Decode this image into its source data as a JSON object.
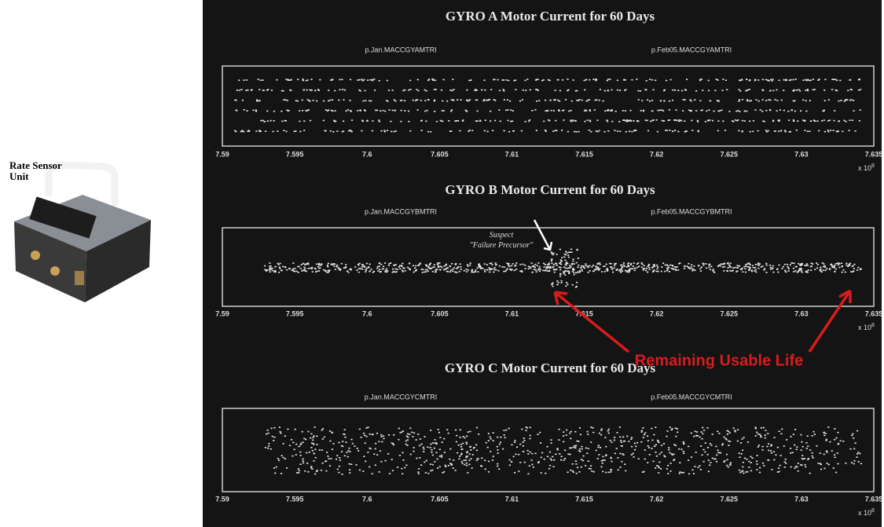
{
  "left": {
    "label_lines": [
      "Rate Sensor",
      "Unit"
    ]
  },
  "panels": [
    {
      "title": "GYRO A Motor Current for 60 Days",
      "legend_left": "p.Jan.MACCGYAMTRI",
      "legend_right": "p.Feb05.MACCGYAMTRI",
      "xticks": [
        "7.59",
        "7.595",
        "7.6",
        "7.605",
        "7.61",
        "7.615",
        "7.62",
        "7.625",
        "7.63",
        "7.635"
      ],
      "multiplier": "x 10",
      "exponent": "8"
    },
    {
      "title": "GYRO B Motor Current for 60 Days",
      "legend_left": "p.Jan.MACCGYBMTRI",
      "legend_right": "p.Feb05.MACCGYBMTRI",
      "xticks": [
        "7.59",
        "7.595",
        "7.6",
        "7.605",
        "7.61",
        "7.615",
        "7.62",
        "7.625",
        "7.63",
        "7.635"
      ],
      "multiplier": "x 10",
      "exponent": "8"
    },
    {
      "title": "GYRO C Motor Current for 60 Days",
      "legend_left": "p.Jan.MACCGYCMTRI",
      "legend_right": "p.Feb05.MACCGYCMTRI",
      "xticks": [
        "7.59",
        "7.595",
        "7.6",
        "7.605",
        "7.61",
        "7.615",
        "7.62",
        "7.625",
        "7.63",
        "7.635"
      ],
      "multiplier": "x 10",
      "exponent": "8"
    }
  ],
  "annotations": {
    "suspect_lines": [
      "Suspect",
      "\"Failure Precursor\""
    ],
    "remaining": "Remaining Usable Life"
  }
}
